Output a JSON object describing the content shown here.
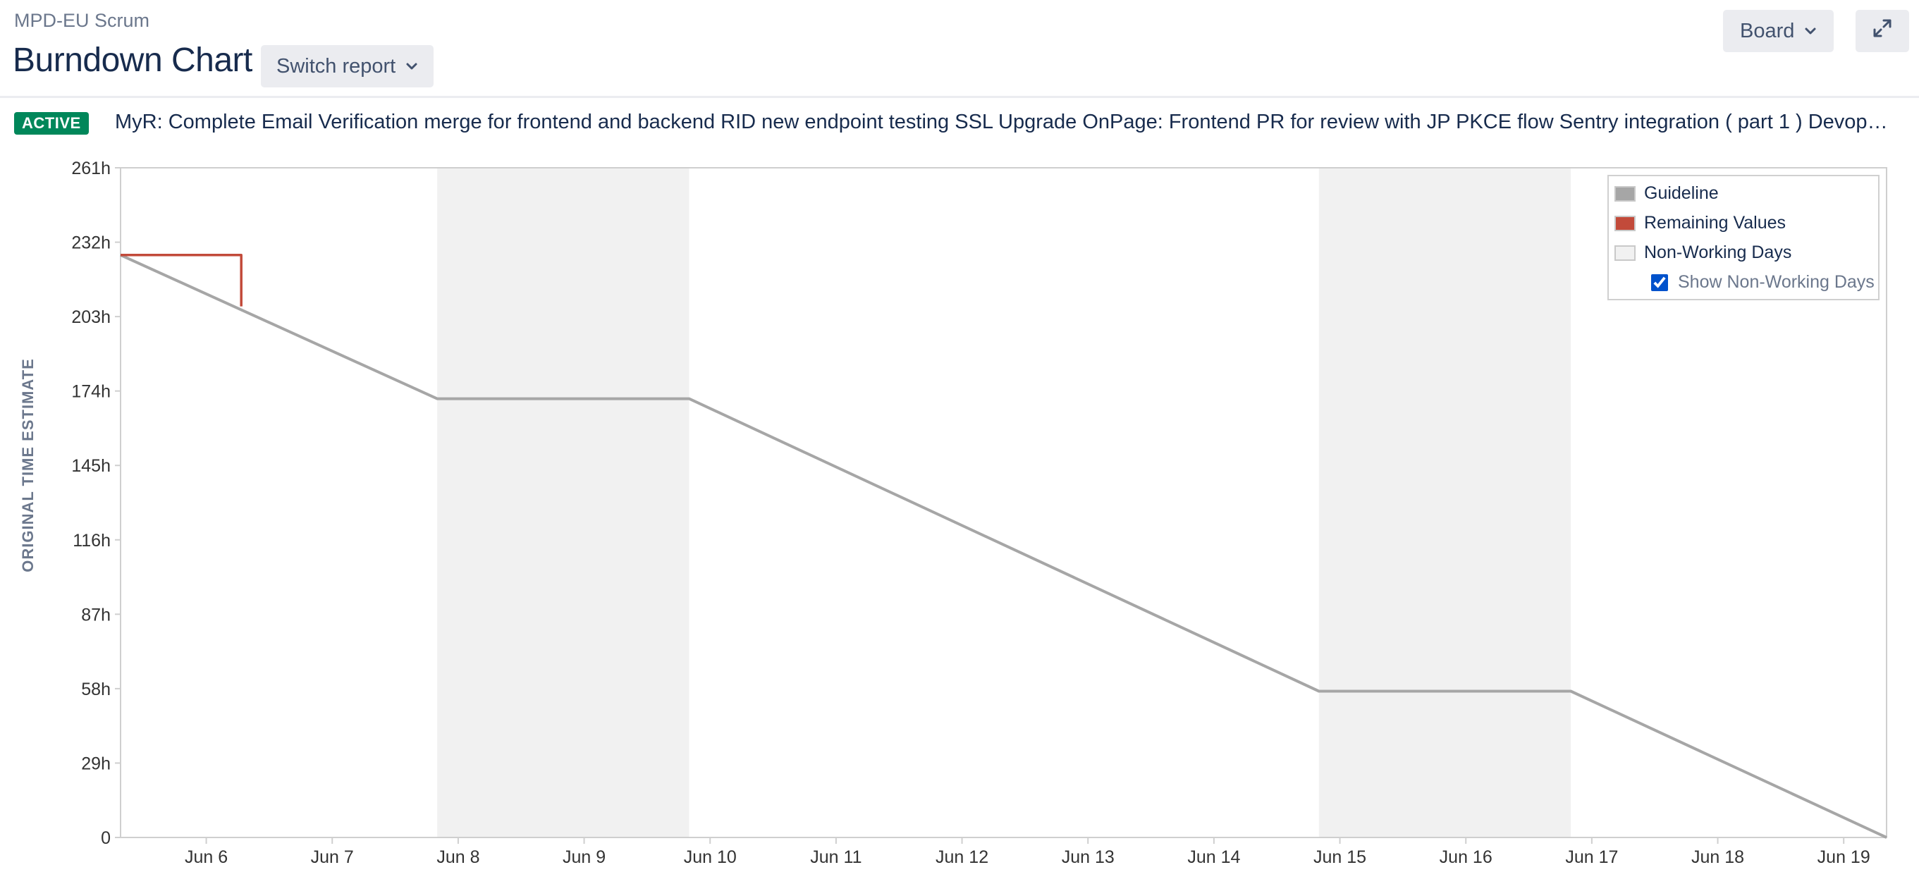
{
  "header": {
    "project": "MPD-EU Scrum",
    "title": "Burndown Chart",
    "switch_report_label": "Switch report",
    "board_label": "Board"
  },
  "sprint": {
    "status": "ACTIVE",
    "goal": "MyR: Complete Email Verification merge for frontend and backend RID new endpoint testing SSL Upgrade OnPage: Frontend PR for review with JP PKCE flow Sentry integration ( part 1 ) Devops:..."
  },
  "icons": {
    "switch_report_chevron": "chevron-down-icon",
    "board_chevron": "chevron-down-icon",
    "fullscreen": "expand-icon"
  },
  "colors": {
    "guideline": "#a6a6a6",
    "remaining": "#c24a3a",
    "non_working": "#f1f1f1",
    "active_badge": "#00875a"
  },
  "legend": {
    "guideline": "Guideline",
    "remaining": "Remaining Values",
    "non_working": "Non-Working Days",
    "show_non_working": "Show Non-Working Days",
    "show_non_working_checked": true
  },
  "chart_data": {
    "type": "line",
    "ylabel": "ORIGINAL TIME ESTIMATE",
    "y_ticks": [
      0,
      29,
      58,
      87,
      116,
      145,
      174,
      203,
      232,
      261
    ],
    "y_tick_labels": [
      "0",
      "29h",
      "58h",
      "87h",
      "116h",
      "145h",
      "174h",
      "203h",
      "232h",
      "261h"
    ],
    "ylim": [
      0,
      261
    ],
    "x_tick_labels": [
      "Jun 6",
      "Jun 7",
      "Jun 8",
      "Jun 9",
      "Jun 10",
      "Jun 11",
      "Jun 12",
      "Jun 13",
      "Jun 14",
      "Jun 15",
      "Jun 16",
      "Jun 17",
      "Jun 18",
      "Jun 19"
    ],
    "xlim": [
      "Jun 5 19:40",
      "Jun 19 20:10"
    ],
    "grid": false,
    "legend_position": "top-right",
    "non_working_periods": [
      [
        "Jun 8 08:00",
        "Jun 10 08:00"
      ],
      [
        "Jun 15 08:00",
        "Jun 17 08:00"
      ]
    ],
    "series": [
      {
        "name": "Guideline",
        "points": [
          [
            "Jun 5 19:40",
            227
          ],
          [
            "Jun 8 08:00",
            171
          ],
          [
            "Jun 10 08:00",
            171
          ],
          [
            "Jun 15 08:00",
            57
          ],
          [
            "Jun 17 08:00",
            57
          ],
          [
            "Jun 19 20:10",
            0
          ]
        ]
      },
      {
        "name": "Remaining Values",
        "points": [
          [
            "Jun 5 19:40",
            227
          ],
          [
            "Jun 6 18:40",
            227
          ],
          [
            "Jun 6 18:40",
            207
          ]
        ]
      }
    ]
  }
}
